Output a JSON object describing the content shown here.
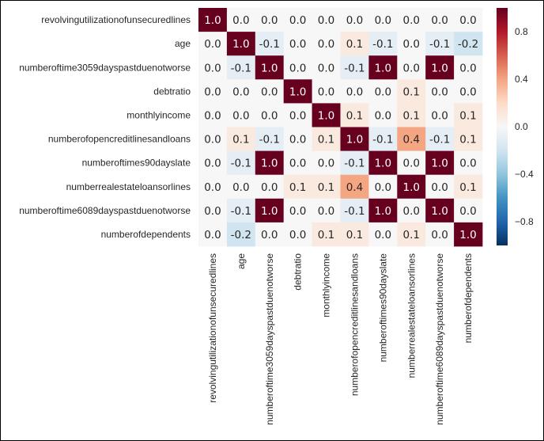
{
  "chart_data": {
    "type": "heatmap",
    "title": "",
    "xlabel": "",
    "ylabel": "",
    "row_labels": [
      "revolvingutilizationofunsecuredlines",
      "age",
      "numberoftime3059dayspastduenotworse",
      "debtratio",
      "monthlyincome",
      "numberofopencreditlinesandloans",
      "numberoftimes90dayslate",
      "numberrealestateloansorlines",
      "numberoftime6089dayspastduenotworse",
      "numberofdependents"
    ],
    "col_labels": [
      "revolvingutilizationofunsecuredlines",
      "age",
      "numberoftime3059dayspastduenotworse",
      "debtratio",
      "monthlyincome",
      "numberofopencreditlinesandloans",
      "numberoftimes90dayslate",
      "numberrealestateloansorlines",
      "numberoftime6089dayspastduenotworse",
      "numberofdependents"
    ],
    "values": [
      [
        1.0,
        -0.0,
        -0.0,
        0.0,
        0.0,
        -0.0,
        -0.0,
        0.0,
        -0.0,
        0.0
      ],
      [
        -0.0,
        1.0,
        -0.1,
        0.0,
        0.0,
        0.1,
        -0.1,
        0.0,
        -0.1,
        -0.2
      ],
      [
        -0.0,
        -0.1,
        1.0,
        -0.0,
        -0.0,
        -0.1,
        1.0,
        -0.0,
        1.0,
        -0.0
      ],
      [
        0.0,
        0.0,
        -0.0,
        1.0,
        -0.0,
        0.0,
        -0.0,
        0.1,
        -0.0,
        -0.0
      ],
      [
        0.0,
        0.0,
        -0.0,
        -0.0,
        1.0,
        0.1,
        -0.0,
        0.1,
        -0.0,
        0.1
      ],
      [
        -0.0,
        0.1,
        -0.1,
        0.0,
        0.1,
        1.0,
        -0.1,
        0.4,
        -0.1,
        0.1
      ],
      [
        -0.0,
        -0.1,
        1.0,
        -0.0,
        -0.0,
        -0.1,
        1.0,
        -0.0,
        1.0,
        -0.0
      ],
      [
        0.0,
        0.0,
        -0.0,
        0.1,
        0.1,
        0.4,
        -0.0,
        1.0,
        -0.0,
        0.1
      ],
      [
        -0.0,
        -0.1,
        1.0,
        -0.0,
        -0.0,
        -0.1,
        1.0,
        -0.0,
        1.0,
        -0.0
      ],
      [
        0.0,
        -0.2,
        -0.0,
        -0.0,
        0.1,
        0.1,
        -0.0,
        0.1,
        -0.0,
        1.0
      ]
    ],
    "vmin": -1.0,
    "vmax": 1.0,
    "colormap": "RdBu_r",
    "colorbar_ticks": [
      "0.8",
      "0.4",
      "0.0",
      "−0.4",
      "−0.8"
    ],
    "colorbar_tick_values": [
      0.8,
      0.4,
      0.0,
      -0.4,
      -0.8
    ],
    "legend": "colorbar-right",
    "grid": false,
    "colors": {
      "max": "#67001f",
      "mid": "#f7f7f7",
      "min": "#053061",
      "text_light": "#ffffff",
      "text_dark": "#262626"
    }
  }
}
